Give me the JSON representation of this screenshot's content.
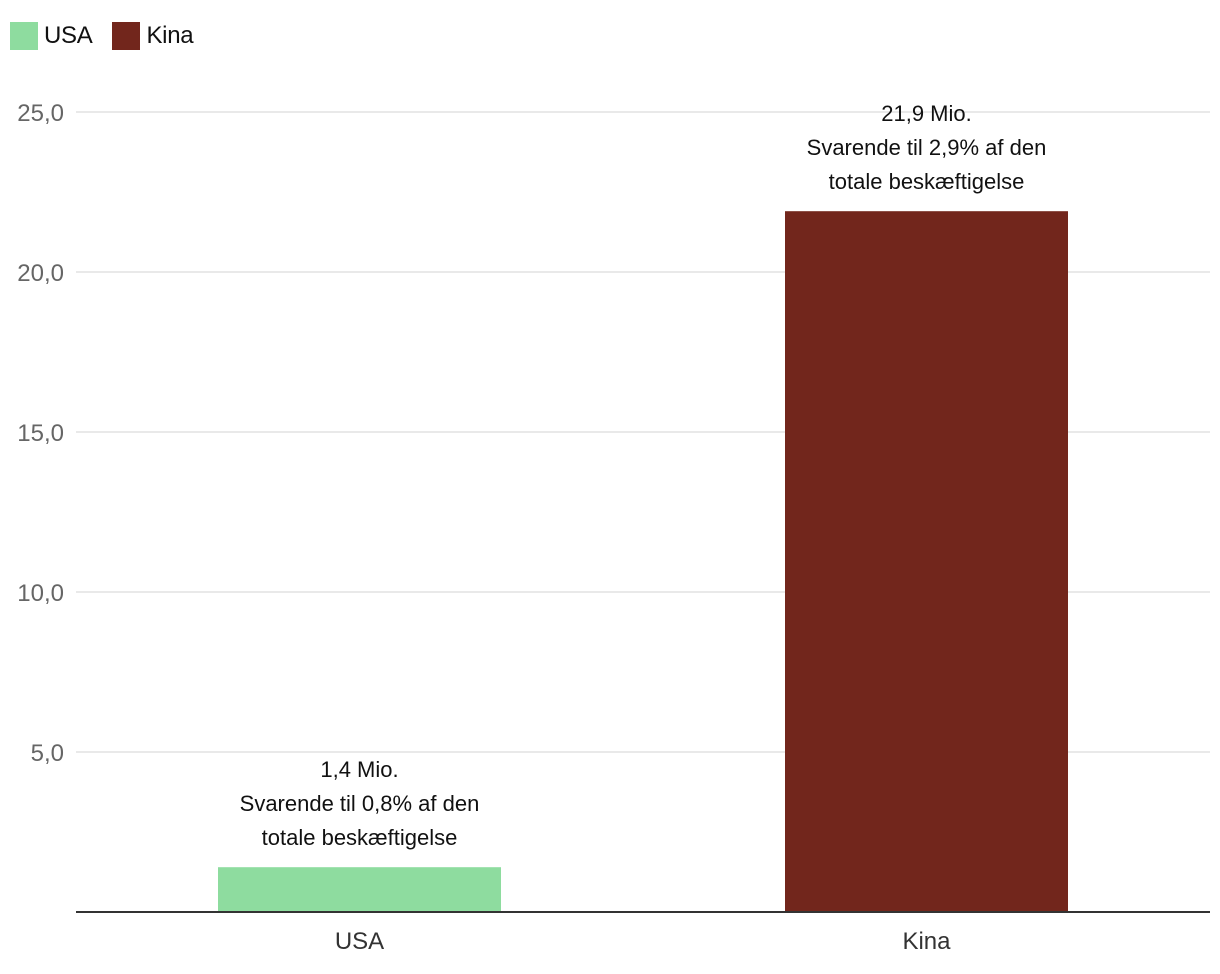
{
  "chart_data": {
    "type": "bar",
    "categories": [
      "USA",
      "Kina"
    ],
    "values": [
      1.4,
      21.9
    ],
    "colors": [
      "#8edc9f",
      "#72261c"
    ],
    "legend": [
      {
        "label": "USA",
        "color": "#8edc9f"
      },
      {
        "label": "Kina",
        "color": "#72261c"
      }
    ],
    "legend_position": "top-left",
    "y_ticks": [
      "5,0",
      "10,0",
      "15,0",
      "20,0",
      "25,0"
    ],
    "y_tick_values": [
      5,
      10,
      15,
      20,
      25
    ],
    "ylim": [
      0,
      25
    ],
    "grid": true,
    "data_labels": [
      [
        "1,4 Mio.",
        "Svarende til 0,8% af den",
        "totale beskæftigelse"
      ],
      [
        "21,9 Mio.",
        "Svarende til 2,9% af den",
        "totale beskæftigelse"
      ]
    ]
  }
}
